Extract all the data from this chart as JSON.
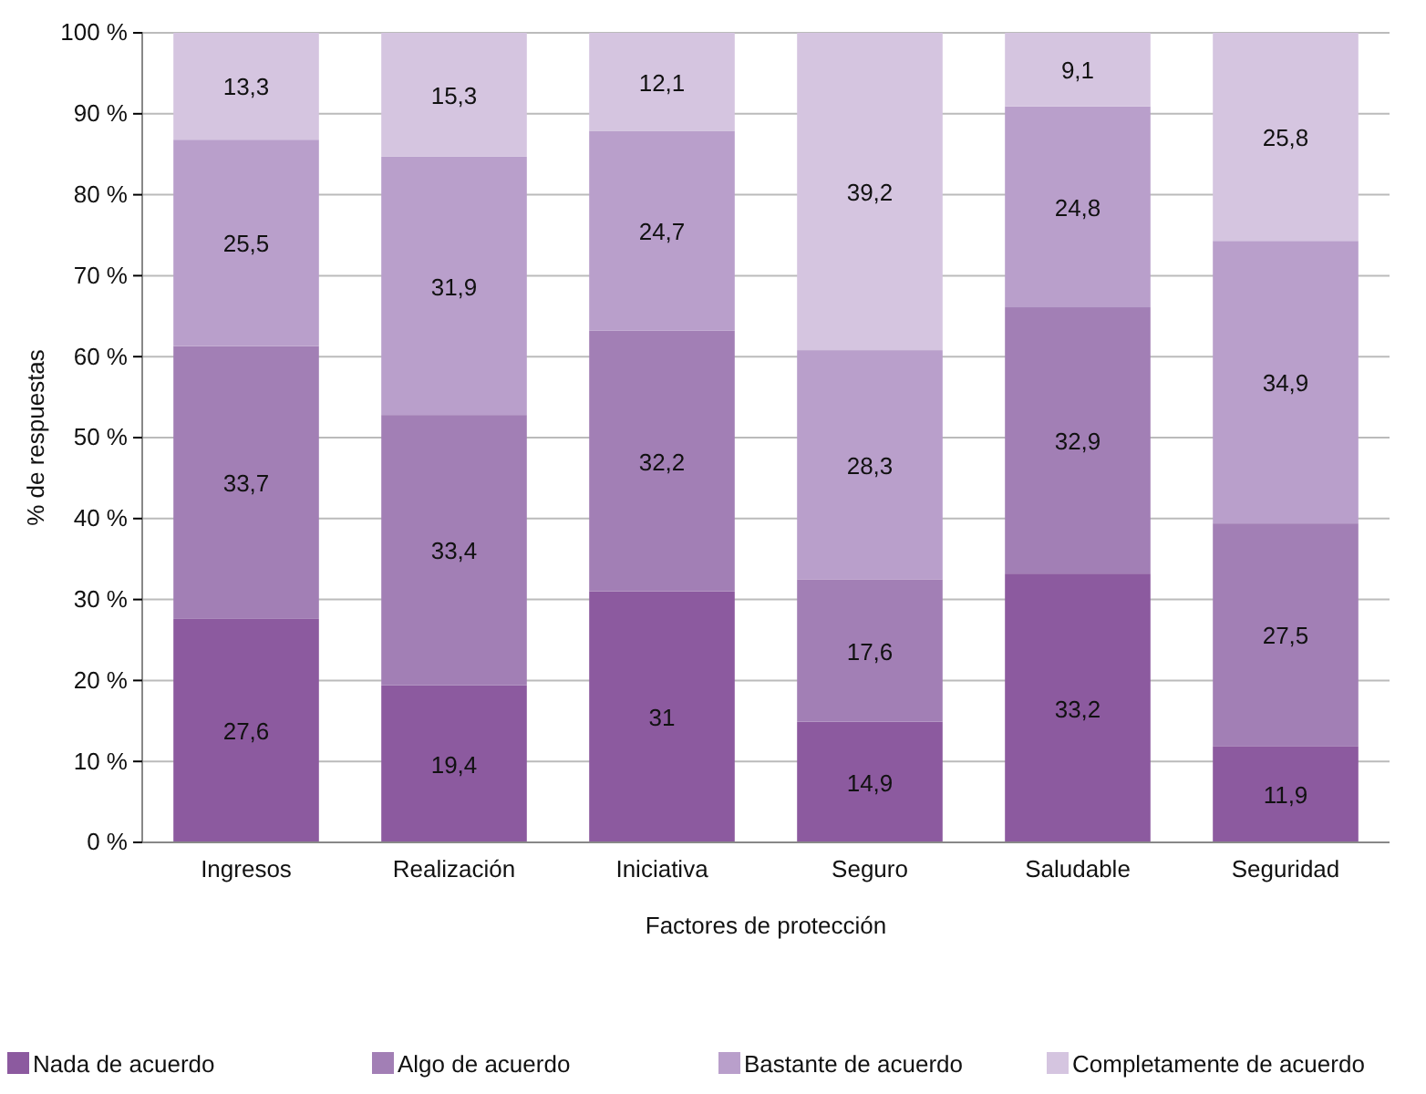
{
  "chart_data": {
    "type": "bar",
    "stacked": true,
    "xlabel": "Factores de protección",
    "ylabel": "% de respuestas",
    "categories": [
      "Ingresos",
      "Realización",
      "Iniciativa",
      "Seguro",
      "Saludable",
      "Seguridad"
    ],
    "series": [
      {
        "name": "Nada de acuerdo",
        "color": "#8c5a9f",
        "values": [
          27.6,
          19.4,
          31,
          14.9,
          33.2,
          11.9
        ],
        "value_labels": [
          "27,6",
          "19,4",
          "31",
          "14,9",
          "33,2",
          "11,9"
        ]
      },
      {
        "name": "Algo de acuerdo",
        "color": "#a27fb5",
        "values": [
          33.7,
          33.4,
          32.2,
          17.6,
          32.9,
          27.5
        ],
        "value_labels": [
          "33,7",
          "33,4",
          "32,2",
          "17,6",
          "32,9",
          "27,5"
        ]
      },
      {
        "name": "Bastante de acuerdo",
        "color": "#b99fcb",
        "values": [
          25.5,
          31.9,
          24.7,
          28.3,
          24.8,
          34.9
        ],
        "value_labels": [
          "25,5",
          "31,9",
          "24,7",
          "28,3",
          "24,8",
          "34,9"
        ]
      },
      {
        "name": "Completamente de acuerdo",
        "color": "#d5c5e0",
        "values": [
          13.3,
          15.3,
          12.1,
          39.2,
          9.1,
          25.8
        ],
        "value_labels": [
          "13,3",
          "15,3",
          "12,1",
          "39,2",
          "9,1",
          "25,8"
        ]
      }
    ],
    "ylim": [
      0,
      100
    ],
    "yticks": [
      {
        "value": 0,
        "label": "0 %"
      },
      {
        "value": 10,
        "label": "10 %"
      },
      {
        "value": 20,
        "label": "20 %"
      },
      {
        "value": 30,
        "label": "30 %"
      },
      {
        "value": 40,
        "label": "40 %"
      },
      {
        "value": 50,
        "label": "50 %"
      },
      {
        "value": 60,
        "label": "60 %"
      },
      {
        "value": 70,
        "label": "70 %"
      },
      {
        "value": 80,
        "label": "80 %"
      },
      {
        "value": 90,
        "label": "90 %"
      },
      {
        "value": 100,
        "label": "100 %"
      }
    ],
    "grid": "y",
    "legend": "bottom"
  }
}
